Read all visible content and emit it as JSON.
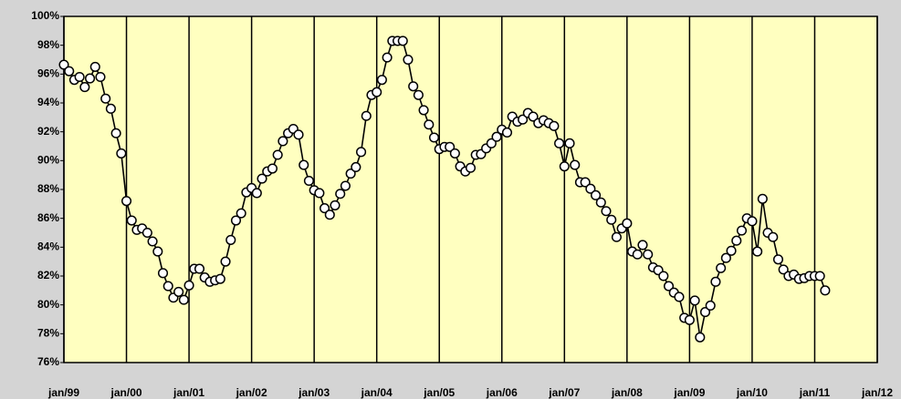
{
  "chart_data": {
    "type": "line",
    "x": [
      "1999-01",
      "1999-02",
      "1999-03",
      "1999-04",
      "1999-05",
      "1999-06",
      "1999-07",
      "1999-08",
      "1999-09",
      "1999-10",
      "1999-11",
      "1999-12",
      "2000-01",
      "2000-02",
      "2000-03",
      "2000-04",
      "2000-05",
      "2000-06",
      "2000-07",
      "2000-08",
      "2000-09",
      "2000-10",
      "2000-11",
      "2000-12",
      "2001-01",
      "2001-02",
      "2001-03",
      "2001-04",
      "2001-05",
      "2001-06",
      "2001-07",
      "2001-08",
      "2001-09",
      "2001-10",
      "2001-11",
      "2001-12",
      "2002-01",
      "2002-02",
      "2002-03",
      "2002-04",
      "2002-05",
      "2002-06",
      "2002-07",
      "2002-08",
      "2002-09",
      "2002-10",
      "2002-11",
      "2002-12",
      "2003-01",
      "2003-02",
      "2003-03",
      "2003-04",
      "2003-05",
      "2003-06",
      "2003-07",
      "2003-08",
      "2003-09",
      "2003-10",
      "2003-11",
      "2003-12",
      "2004-01",
      "2004-02",
      "2004-03",
      "2004-04",
      "2004-05",
      "2004-06",
      "2004-07",
      "2004-08",
      "2004-09",
      "2004-10",
      "2004-11",
      "2004-12",
      "2005-01",
      "2005-02",
      "2005-03",
      "2005-04",
      "2005-05",
      "2005-06",
      "2005-07",
      "2005-08",
      "2005-09",
      "2005-10",
      "2005-11",
      "2005-12",
      "2006-01",
      "2006-02",
      "2006-03",
      "2006-04",
      "2006-05",
      "2006-06",
      "2006-07",
      "2006-08",
      "2006-09",
      "2006-10",
      "2006-11",
      "2006-12",
      "2007-01",
      "2007-02",
      "2007-03",
      "2007-04",
      "2007-05",
      "2007-06",
      "2007-07",
      "2007-08",
      "2007-09",
      "2007-10",
      "2007-11",
      "2007-12",
      "2008-01",
      "2008-02",
      "2008-03",
      "2008-04",
      "2008-05",
      "2008-06",
      "2008-07",
      "2008-08",
      "2008-09",
      "2008-10",
      "2008-11",
      "2008-12",
      "2009-01",
      "2009-02",
      "2009-03",
      "2009-04",
      "2009-05",
      "2009-06",
      "2009-07",
      "2009-08",
      "2009-09",
      "2009-10",
      "2009-11",
      "2009-12",
      "2010-01",
      "2010-02",
      "2010-03",
      "2010-04",
      "2010-05",
      "2010-06",
      "2010-07",
      "2010-08",
      "2010-09",
      "2010-10",
      "2010-11",
      "2010-12",
      "2011-01",
      "2011-02",
      "2011-03"
    ],
    "series": [
      {
        "color": "#000000",
        "values": [
          96.65,
          96.2,
          95.6,
          95.8,
          95.1,
          95.7,
          96.5,
          95.8,
          94.3,
          93.6,
          91.9,
          90.5,
          87.2,
          85.85,
          85.2,
          85.3,
          85.0,
          84.4,
          83.7,
          82.2,
          81.3,
          80.5,
          80.9,
          80.35,
          81.35,
          82.5,
          82.5,
          81.9,
          81.6,
          81.7,
          81.8,
          83.0,
          84.5,
          85.85,
          86.35,
          87.8,
          88.1,
          87.75,
          88.75,
          89.25,
          89.45,
          90.4,
          91.35,
          91.9,
          92.2,
          91.8,
          89.7,
          88.6,
          87.95,
          87.75,
          86.7,
          86.25,
          86.9,
          87.7,
          88.25,
          89.1,
          89.55,
          90.6,
          93.1,
          94.55,
          94.75,
          95.6,
          97.15,
          98.3,
          98.3,
          98.3,
          97.0,
          95.15,
          94.55,
          93.5,
          92.5,
          91.6,
          90.8,
          90.95,
          90.95,
          90.5,
          89.6,
          89.25,
          89.5,
          90.4,
          90.45,
          90.85,
          91.2,
          91.65,
          92.15,
          91.95,
          93.05,
          92.7,
          92.85,
          93.3,
          93.05,
          92.6,
          92.8,
          92.6,
          92.4,
          91.2,
          89.6,
          91.2,
          89.7,
          88.5,
          88.5,
          88.05,
          87.6,
          87.1,
          86.5,
          85.9,
          84.7,
          85.3,
          85.65,
          83.7,
          83.5,
          84.15,
          83.5,
          82.6,
          82.4,
          82.0,
          81.3,
          80.85,
          80.55,
          79.1,
          78.95,
          80.3,
          77.75,
          79.5,
          79.95,
          81.6,
          82.55,
          83.25,
          83.75,
          84.45,
          85.15,
          86.0,
          85.8,
          83.7,
          87.35,
          85.0,
          84.7,
          83.15,
          82.45,
          82.0,
          82.1,
          81.8,
          81.85,
          82.0,
          82.0,
          82.0,
          81.0
        ]
      }
    ],
    "xlim": [
      "1999-01",
      "2012-01"
    ],
    "xticks": [
      {
        "value": "1999-01",
        "label": "jan/99"
      },
      {
        "value": "2000-01",
        "label": "jan/00"
      },
      {
        "value": "2001-01",
        "label": "jan/01"
      },
      {
        "value": "2002-01",
        "label": "jan/02"
      },
      {
        "value": "2003-01",
        "label": "jan/03"
      },
      {
        "value": "2004-01",
        "label": "jan/04"
      },
      {
        "value": "2005-01",
        "label": "jan/05"
      },
      {
        "value": "2006-01",
        "label": "jan/06"
      },
      {
        "value": "2007-01",
        "label": "jan/07"
      },
      {
        "value": "2008-01",
        "label": "jan/08"
      },
      {
        "value": "2009-01",
        "label": "jan/09"
      },
      {
        "value": "2010-01",
        "label": "jan/10"
      },
      {
        "value": "2011-01",
        "label": "jan/11"
      },
      {
        "value": "2012-01",
        "label": "jan/12"
      }
    ],
    "ylim": [
      76,
      100
    ],
    "yticks": [
      {
        "value": 76,
        "label": "76%"
      },
      {
        "value": 78,
        "label": "78%"
      },
      {
        "value": 80,
        "label": "80%"
      },
      {
        "value": 82,
        "label": "82%"
      },
      {
        "value": 84,
        "label": "84%"
      },
      {
        "value": 86,
        "label": "86%"
      },
      {
        "value": 88,
        "label": "88%"
      },
      {
        "value": 90,
        "label": "90%"
      },
      {
        "value": 92,
        "label": "92%"
      },
      {
        "value": 94,
        "label": "94%"
      },
      {
        "value": 96,
        "label": "96%"
      },
      {
        "value": 98,
        "label": "98%"
      },
      {
        "value": 100,
        "label": "100%"
      }
    ],
    "grid": "x"
  }
}
